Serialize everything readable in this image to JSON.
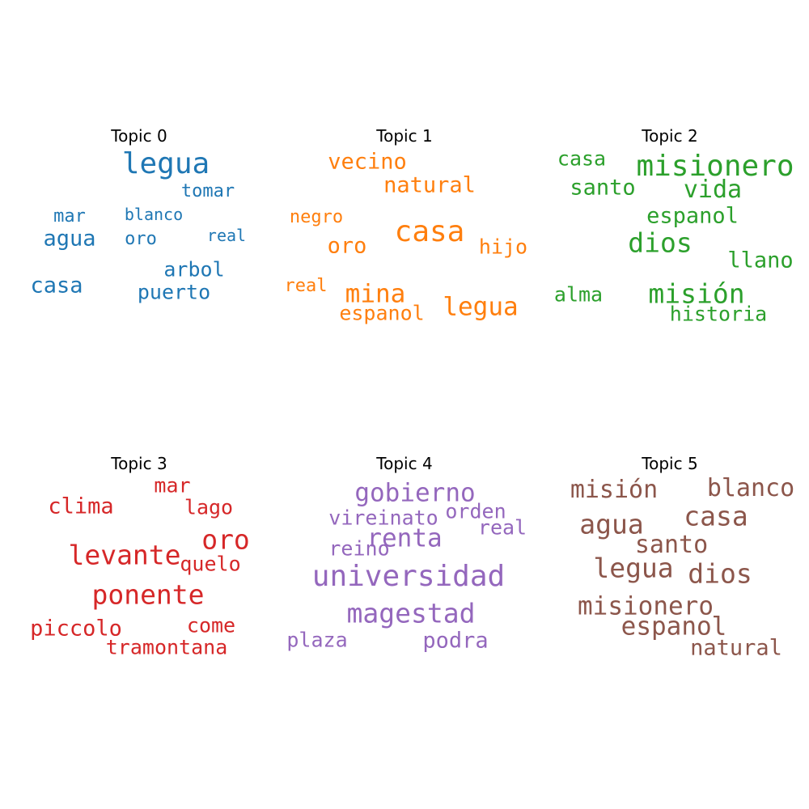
{
  "chart_data": [
    {
      "type": "wordcloud",
      "title": "Topic 0",
      "color": "#1f77b4",
      "words": [
        {
          "text": "legua",
          "weight": 1.0
        },
        {
          "text": "tomar",
          "weight": 0.62
        },
        {
          "text": "mar",
          "weight": 0.62
        },
        {
          "text": "blanco",
          "weight": 0.56
        },
        {
          "text": "agua",
          "weight": 0.75
        },
        {
          "text": "oro",
          "weight": 0.62
        },
        {
          "text": "real",
          "weight": 0.56
        },
        {
          "text": "arbol",
          "weight": 0.69
        },
        {
          "text": "casa",
          "weight": 0.75
        },
        {
          "text": "puerto",
          "weight": 0.69
        }
      ]
    },
    {
      "type": "wordcloud",
      "title": "Topic 1",
      "color": "#ff7f0e",
      "words": [
        {
          "text": "vecino",
          "weight": 0.75
        },
        {
          "text": "natural",
          "weight": 0.75
        },
        {
          "text": "negro",
          "weight": 0.62
        },
        {
          "text": "casa",
          "weight": 1.0
        },
        {
          "text": "oro",
          "weight": 0.75
        },
        {
          "text": "hijo",
          "weight": 0.69
        },
        {
          "text": "real",
          "weight": 0.62
        },
        {
          "text": "mina",
          "weight": 0.85
        },
        {
          "text": "legua",
          "weight": 0.85
        },
        {
          "text": "espanol",
          "weight": 0.69
        }
      ]
    },
    {
      "type": "wordcloud",
      "title": "Topic 2",
      "color": "#2ca02c",
      "words": [
        {
          "text": "casa",
          "weight": 0.69
        },
        {
          "text": "misionero",
          "weight": 1.0
        },
        {
          "text": "santo",
          "weight": 0.75
        },
        {
          "text": "vida",
          "weight": 0.82
        },
        {
          "text": "espanol",
          "weight": 0.75
        },
        {
          "text": "dios",
          "weight": 0.92
        },
        {
          "text": "llano",
          "weight": 0.75
        },
        {
          "text": "alma",
          "weight": 0.69
        },
        {
          "text": "misión",
          "weight": 0.92
        },
        {
          "text": "historia",
          "weight": 0.69
        }
      ]
    },
    {
      "type": "wordcloud",
      "title": "Topic 3",
      "color": "#d62728",
      "words": [
        {
          "text": "mar",
          "weight": 0.69
        },
        {
          "text": "clima",
          "weight": 0.75
        },
        {
          "text": "lago",
          "weight": 0.69
        },
        {
          "text": "oro",
          "weight": 0.92
        },
        {
          "text": "levante",
          "weight": 0.92
        },
        {
          "text": "quelo",
          "weight": 0.69
        },
        {
          "text": "ponente",
          "weight": 0.92
        },
        {
          "text": "piccolo",
          "weight": 0.75
        },
        {
          "text": "come",
          "weight": 0.69
        },
        {
          "text": "tramontana",
          "weight": 0.69
        }
      ]
    },
    {
      "type": "wordcloud",
      "title": "Topic 4",
      "color": "#9467bd",
      "words": [
        {
          "text": "gobierno",
          "weight": 0.85
        },
        {
          "text": "orden",
          "weight": 0.69
        },
        {
          "text": "vireinato",
          "weight": 0.69
        },
        {
          "text": "real",
          "weight": 0.69
        },
        {
          "text": "renta",
          "weight": 0.85
        },
        {
          "text": "reino",
          "weight": 0.69
        },
        {
          "text": "universidad",
          "weight": 1.0
        },
        {
          "text": "magestad",
          "weight": 0.92
        },
        {
          "text": "plaza",
          "weight": 0.69
        },
        {
          "text": "podra",
          "weight": 0.75
        }
      ]
    },
    {
      "type": "wordcloud",
      "title": "Topic 5",
      "color": "#8c564b",
      "words": [
        {
          "text": "misión",
          "weight": 0.82
        },
        {
          "text": "blanco",
          "weight": 0.82
        },
        {
          "text": "casa",
          "weight": 0.92
        },
        {
          "text": "agua",
          "weight": 0.92
        },
        {
          "text": "santo",
          "weight": 0.82
        },
        {
          "text": "legua",
          "weight": 0.92
        },
        {
          "text": "dios",
          "weight": 0.92
        },
        {
          "text": "misionero",
          "weight": 0.85
        },
        {
          "text": "espanol",
          "weight": 0.85
        },
        {
          "text": "natural",
          "weight": 0.75
        }
      ]
    }
  ]
}
